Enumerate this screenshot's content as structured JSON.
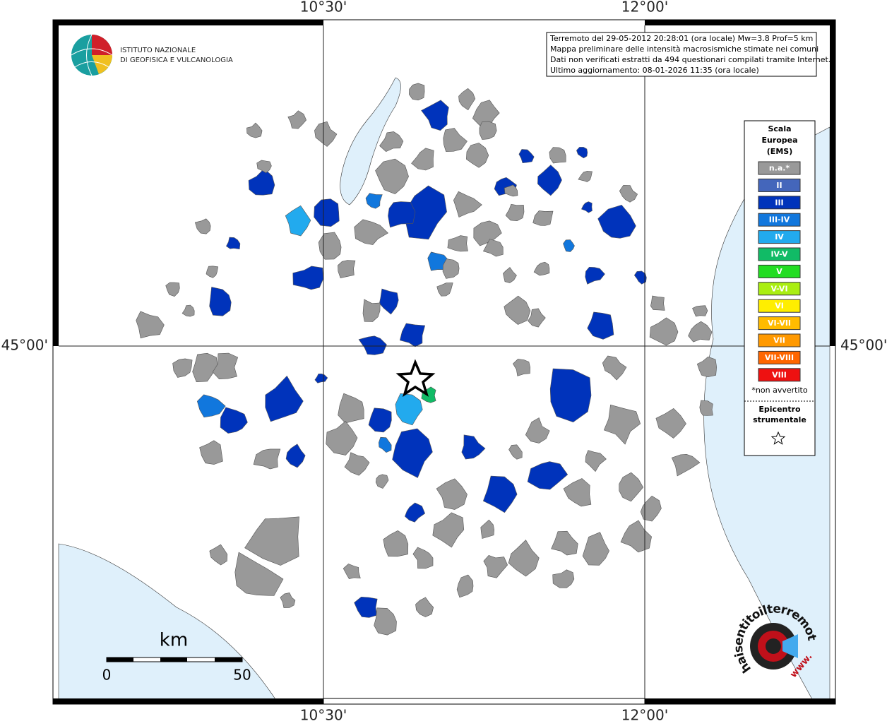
{
  "map": {
    "top_labels": [
      "10°30'",
      "12°00'"
    ],
    "bottom_labels": [
      "10°30'",
      "12°00'"
    ],
    "left_label": "45°00'",
    "right_label": "45°00'"
  },
  "institute": [
    "ISTITUTO NAZIONALE",
    "DI GEOFISICA E VULCANOLOGIA"
  ],
  "info": [
    "Terremoto del 29-05-2012 20:28:01 (ora locale) Mw=3.8 Prof=5 km",
    "Mappa preliminare delle intensità macrosismiche stimate nei comuni",
    "Dati non verificati estratti da 494 questionari compilati tramite Internet.",
    "Ultimo aggiornamento: 08-01-2026 11:35 (ora locale)"
  ],
  "legend": {
    "title": [
      "Scala",
      "Europea",
      "(EMS)"
    ],
    "items": [
      {
        "label": "n.a.*",
        "color": "#999999"
      },
      {
        "label": "II",
        "color": "#4466bb"
      },
      {
        "label": "III",
        "color": "#0033bb"
      },
      {
        "label": "III-IV",
        "color": "#1177dd"
      },
      {
        "label": "IV",
        "color": "#22aaee"
      },
      {
        "label": "IV-V",
        "color": "#11bb66"
      },
      {
        "label": "V",
        "color": "#22dd22"
      },
      {
        "label": "V-VI",
        "color": "#aaee11"
      },
      {
        "label": "VI",
        "color": "#ffee00"
      },
      {
        "label": "VI-VII",
        "color": "#ffbb00"
      },
      {
        "label": "VII",
        "color": "#ff9900"
      },
      {
        "label": "VII-VIII",
        "color": "#ff6600"
      },
      {
        "label": "VIII",
        "color": "#ee1111"
      }
    ],
    "note": "*non avvertito",
    "epicenter": [
      "Epicentro",
      "strumentale"
    ]
  },
  "scale_bar": {
    "unit": "km",
    "labels": [
      "0",
      "50"
    ]
  },
  "logo": {
    "text": "haisentitoilterremoto.it",
    "www": "www."
  }
}
